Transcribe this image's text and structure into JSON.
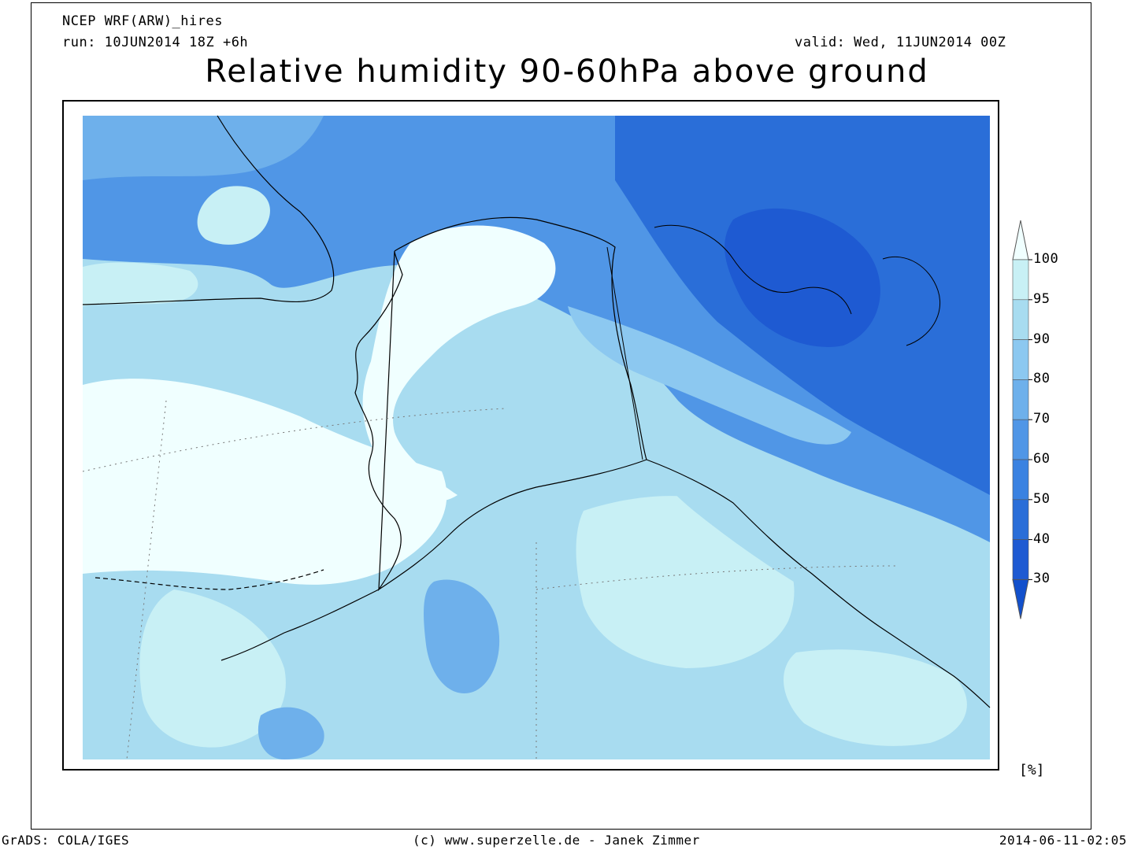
{
  "header": {
    "model": "NCEP WRF(ARW)_hires",
    "run": "run: 10JUN2014 18Z +6h",
    "valid": "valid: Wed, 11JUN2014 00Z",
    "title": "Relative humidity 90-60hPa above ground"
  },
  "colorbar": {
    "labels": [
      "100",
      "95",
      "90",
      "80",
      "70",
      "60",
      "50",
      "40",
      "30"
    ],
    "colors": [
      "#f0ffff",
      "#c8f0f5",
      "#a8dcf0",
      "#8cc8f0",
      "#6eb0eb",
      "#5096e6",
      "#3a82e1",
      "#2a6ed8",
      "#1e5ad2",
      "#1250cc"
    ],
    "unit": "[%]"
  },
  "footer": {
    "left": "GrADS: COLA/IGES",
    "center": "(c) www.superzelle.de - Janek Zimmer",
    "right": "2014-06-11-02:05"
  }
}
